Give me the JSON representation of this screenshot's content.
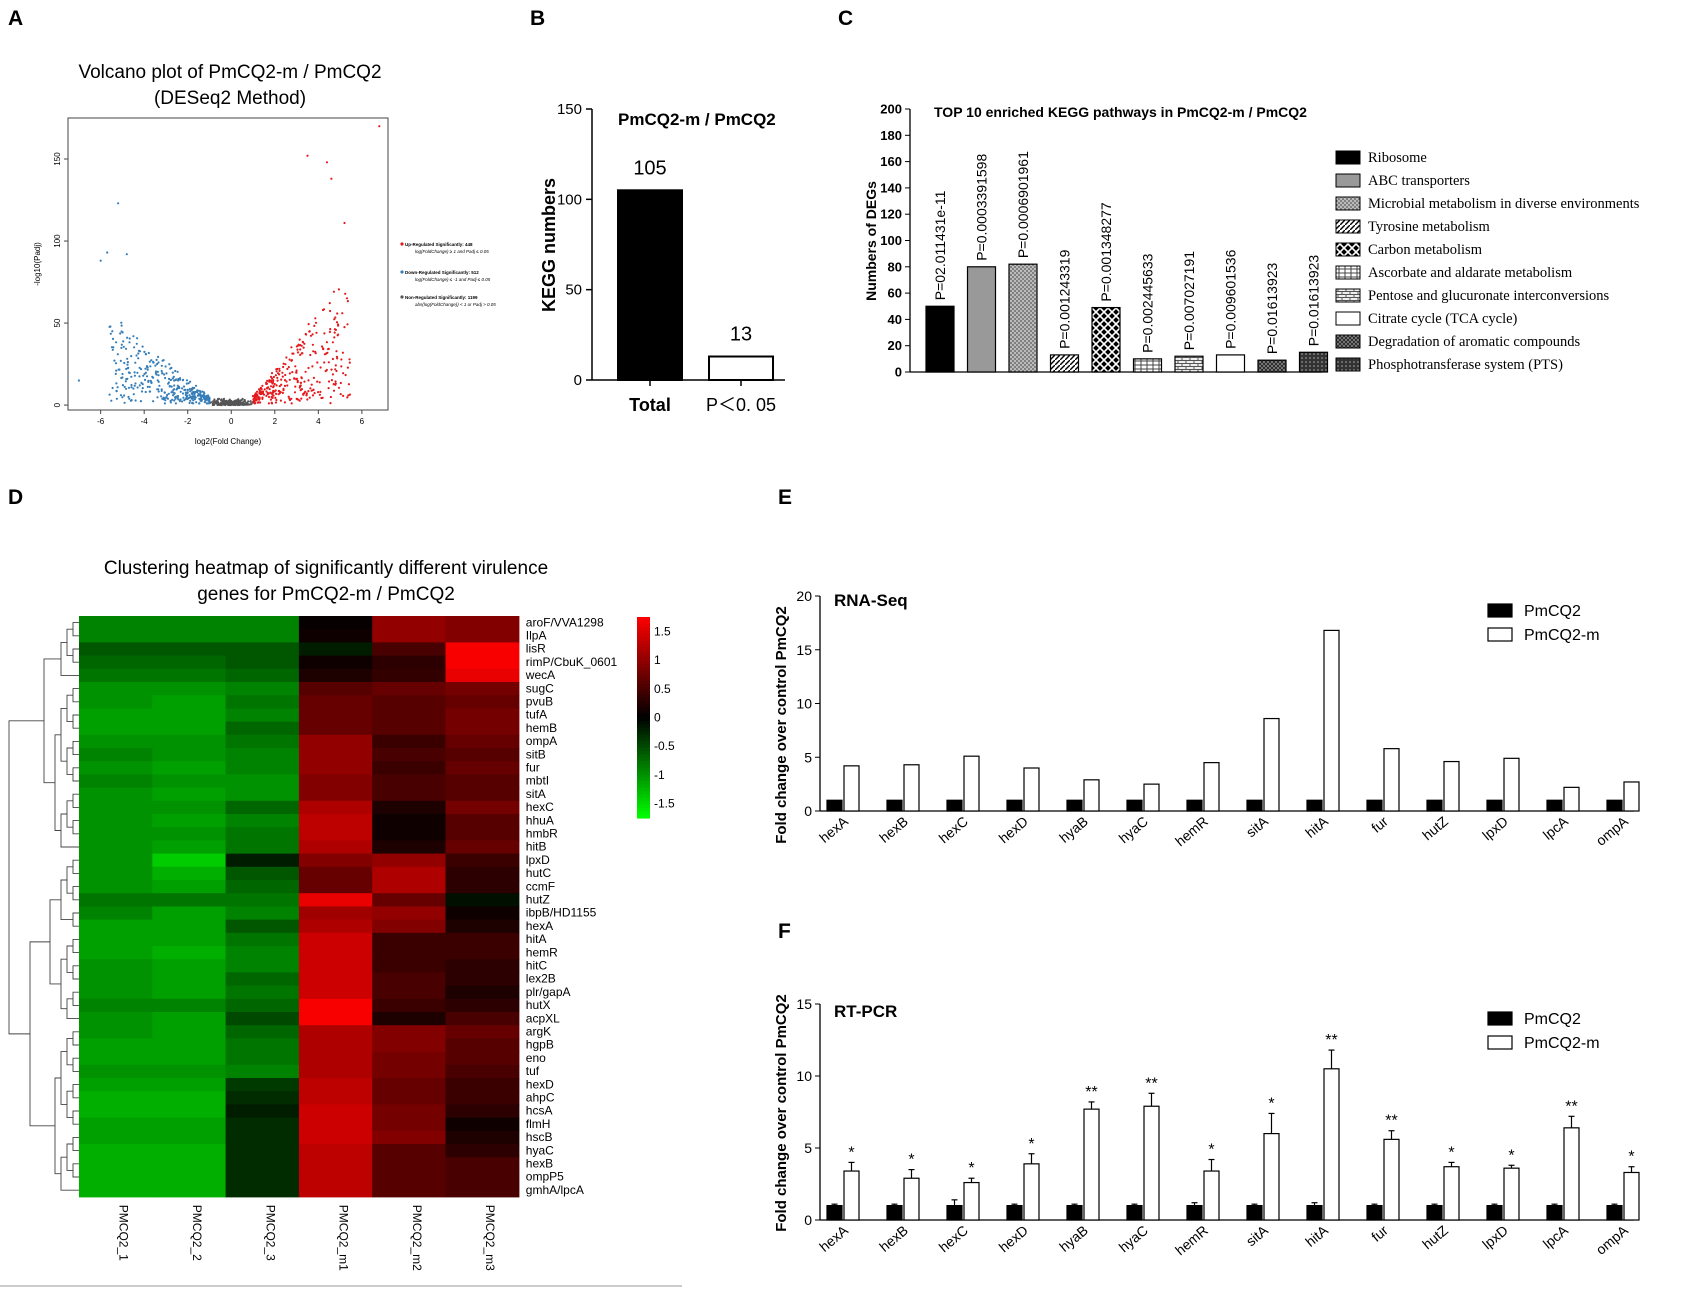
{
  "panels": {
    "A": {
      "letter": "A"
    },
    "B": {
      "letter": "B"
    },
    "C": {
      "letter": "C"
    },
    "D": {
      "letter": "D"
    },
    "E": {
      "letter": "E"
    },
    "F": {
      "letter": "F"
    }
  },
  "colors": {
    "up": "#e41a1c",
    "down": "#377eb8",
    "none": "#555555"
  },
  "chart_data": [
    {
      "id": "A",
      "type": "scatter",
      "title": "Volcano plot of  PmCQ2-m / PmCQ2",
      "subtitle": "(DESeq2 Method)",
      "xlabel": "log2(Fold Change)",
      "ylabel": "-log10(Padj)",
      "xlim": [
        -7.5,
        7.2
      ],
      "ylim": [
        -3,
        175
      ],
      "xticks": [
        -6,
        -4,
        -2,
        0,
        2,
        4,
        6
      ],
      "yticks": [
        0,
        50,
        100,
        150
      ],
      "legend": [
        {
          "label": "Up-Regulated Significantly: 448",
          "sub": "log(FoldChange) ≥ 1 and Padj ≤ 0.05"
        },
        {
          "label": "Down-Regulated Significantly: 512",
          "sub": "log(FoldChange) ≤ -1 and Padj ≤ 0.05"
        },
        {
          "label": "Non-Regulated Significantly: 1199",
          "sub": "abs(log(FoldChange)) < 1 or Padj > 0.05"
        }
      ],
      "highlights": [
        [
          6.8,
          170
        ],
        [
          3.5,
          152
        ],
        [
          4.4,
          148
        ],
        [
          4.6,
          138
        ],
        [
          -5.2,
          123
        ],
        [
          -5.7,
          93
        ],
        [
          -6.0,
          88
        ],
        [
          -4.8,
          92
        ],
        [
          5.2,
          111
        ],
        [
          -7.0,
          15
        ]
      ]
    },
    {
      "id": "B",
      "type": "bar",
      "title": "PmCQ2-m / PmCQ2",
      "ylabel": "KEGG numbers",
      "categories": [
        "Total",
        "P＜0. 05"
      ],
      "values": [
        105,
        13
      ],
      "value_labels": [
        "105",
        "13"
      ],
      "ylim": [
        0,
        150
      ],
      "yticks": [
        0,
        50,
        100,
        150
      ]
    },
    {
      "id": "C",
      "type": "bar",
      "title": "TOP 10 enriched  KEGG pathways  in PmCQ2-m / PmCQ2",
      "ylabel": "Numbers of DEGs",
      "ylim": [
        0,
        200
      ],
      "yticks": [
        0,
        20,
        40,
        60,
        80,
        100,
        120,
        140,
        160,
        180,
        200
      ],
      "categories": [
        "Ribosome",
        "ABC transporters",
        "Microbial metabolism in diverse environments",
        "Tyrosine metabolism",
        "Carbon metabolism",
        "Ascorbate and aldarate metabolism",
        "Pentose and glucuronate interconversions",
        "Citrate cycle (TCA cycle)",
        "Degradation of aromatic compounds",
        "Phosphotransferase system (PTS)"
      ],
      "values": [
        50,
        80,
        82,
        13,
        49,
        10,
        12,
        13,
        9,
        15
      ],
      "pvalues": [
        "P=02.011431e-11",
        "P=0.0003391598",
        "P=0.0006901961",
        "P=0.001243319",
        "P=0.001348277",
        "P=0.002445633",
        "P=0.007027191",
        "P=0.009601536",
        "P=0.01613923",
        "P=0.01613923"
      ],
      "patterns": [
        "black",
        "gray",
        "dots",
        "diag",
        "checker",
        "hgrid",
        "brick",
        "white",
        "cross",
        "darkdots"
      ]
    },
    {
      "id": "D",
      "type": "heatmap",
      "title": "Clustering heatmap of significantly different virulence",
      "subtitle": "genes for PmCQ2-m / PmCQ2",
      "columns": [
        "PMCQ2_1",
        "PMCQ2_2",
        "PMCQ2_3",
        "PMCQ2_m1",
        "PMCQ2_m2",
        "PMCQ2_m3"
      ],
      "rows": [
        "aroF/VVA1298",
        "IlpA",
        "lisR",
        "rimP/CbuK_0601",
        "wecA",
        "sugC",
        "pvuB",
        "tufA",
        "hemB",
        "ompA",
        "sitB",
        "fur",
        "mbtI",
        "sitA",
        "hexC",
        "hhuA",
        "hmbR",
        "hitB",
        "lpxD",
        "hutC",
        "ccmF",
        "hutZ",
        "ibpB/HD1155",
        "hexA",
        "hitA",
        "hemR",
        "hitC",
        "lex2B",
        "plr/gapA",
        "hutX",
        "acpXL",
        "argK",
        "hgpB",
        "eno",
        "tuf",
        "hexD",
        "ahpC",
        "hcsA",
        "flmH",
        "hscB",
        "hyaC",
        "hexB",
        "ompP5",
        "gmhA/lpcA"
      ],
      "values": [
        [
          -0.9,
          -0.9,
          -0.9,
          0.05,
          1.0,
          0.9
        ],
        [
          -0.9,
          -0.9,
          -0.9,
          0.1,
          1.0,
          0.9
        ],
        [
          -0.6,
          -0.6,
          -0.6,
          -0.2,
          0.5,
          1.7
        ],
        [
          -0.7,
          -0.7,
          -0.6,
          0.1,
          0.3,
          1.7
        ],
        [
          -0.8,
          -0.8,
          -0.7,
          0.2,
          0.35,
          1.6
        ],
        [
          -1.0,
          -1.0,
          -0.9,
          0.6,
          0.7,
          0.8
        ],
        [
          -1.0,
          -1.1,
          -0.8,
          0.7,
          0.6,
          0.7
        ],
        [
          -1.1,
          -1.1,
          -0.9,
          0.7,
          0.6,
          0.8
        ],
        [
          -1.1,
          -1.1,
          -0.7,
          0.7,
          0.6,
          0.8
        ],
        [
          -1.0,
          -1.0,
          -0.8,
          1.0,
          0.4,
          0.7
        ],
        [
          -0.9,
          -1.0,
          -0.9,
          1.0,
          0.5,
          0.6
        ],
        [
          -1.0,
          -1.1,
          -0.9,
          1.0,
          0.4,
          0.7
        ],
        [
          -0.9,
          -1.0,
          -1.0,
          0.9,
          0.5,
          0.6
        ],
        [
          -1.0,
          -1.1,
          -1.0,
          0.9,
          0.5,
          0.6
        ],
        [
          -1.0,
          -1.0,
          -0.7,
          1.2,
          0.2,
          0.8
        ],
        [
          -1.0,
          -1.1,
          -0.9,
          1.3,
          0.1,
          0.6
        ],
        [
          -1.0,
          -1.0,
          -0.8,
          1.3,
          0.1,
          0.6
        ],
        [
          -1.0,
          -1.1,
          -0.8,
          1.2,
          0.2,
          0.7
        ],
        [
          -1.0,
          -1.4,
          -0.2,
          0.9,
          1.0,
          0.4
        ],
        [
          -1.0,
          -1.2,
          -0.6,
          0.7,
          1.2,
          0.3
        ],
        [
          -1.0,
          -1.1,
          -0.7,
          0.7,
          1.2,
          0.3
        ],
        [
          -0.8,
          -0.8,
          -0.8,
          1.6,
          0.7,
          -0.1
        ],
        [
          -0.9,
          -1.1,
          -0.9,
          1.1,
          1.0,
          0.1
        ],
        [
          -1.1,
          -1.1,
          -0.6,
          1.2,
          0.9,
          0.2
        ],
        [
          -1.1,
          -1.1,
          -0.8,
          1.4,
          0.4,
          0.4
        ],
        [
          -1.1,
          -1.2,
          -0.9,
          1.4,
          0.4,
          0.4
        ],
        [
          -1.0,
          -1.1,
          -0.9,
          1.4,
          0.4,
          0.3
        ],
        [
          -1.0,
          -1.1,
          -0.7,
          1.4,
          0.5,
          0.3
        ],
        [
          -1.0,
          -1.1,
          -0.8,
          1.4,
          0.5,
          0.2
        ],
        [
          -0.9,
          -0.9,
          -0.7,
          1.7,
          0.4,
          0.3
        ],
        [
          -1.0,
          -1.1,
          -0.5,
          1.7,
          0.2,
          0.5
        ],
        [
          -1.0,
          -1.1,
          -0.7,
          1.2,
          0.9,
          0.7
        ],
        [
          -1.1,
          -1.1,
          -0.8,
          1.2,
          0.9,
          0.6
        ],
        [
          -1.1,
          -1.1,
          -0.8,
          1.2,
          0.8,
          0.6
        ],
        [
          -1.0,
          -1.0,
          -0.9,
          1.2,
          0.8,
          0.5
        ],
        [
          -1.1,
          -1.1,
          -0.4,
          1.3,
          0.7,
          0.4
        ],
        [
          -1.2,
          -1.2,
          -0.3,
          1.3,
          0.7,
          0.4
        ],
        [
          -1.2,
          -1.2,
          -0.2,
          1.4,
          0.8,
          0.3
        ],
        [
          -1.1,
          -1.1,
          -0.3,
          1.4,
          0.8,
          0.1
        ],
        [
          -1.1,
          -1.1,
          -0.3,
          1.4,
          0.9,
          0.2
        ],
        [
          -1.2,
          -1.2,
          -0.3,
          1.3,
          0.6,
          0.3
        ],
        [
          -1.2,
          -1.2,
          -0.3,
          1.3,
          0.6,
          0.5
        ],
        [
          -1.2,
          -1.2,
          -0.3,
          1.3,
          0.6,
          0.5
        ],
        [
          -1.2,
          -1.2,
          -0.3,
          1.3,
          0.6,
          0.5
        ]
      ],
      "colorbar": {
        "ticks": [
          1.5,
          1,
          0.5,
          0,
          -0.5,
          -1,
          -1.5
        ],
        "tick_labels": [
          "1.5",
          "1",
          "0.5",
          "0",
          "-0.5",
          "-1",
          "-1.5"
        ],
        "range": [
          -1.75,
          1.75
        ]
      }
    },
    {
      "id": "E",
      "type": "bar",
      "title": "RNA-Seq",
      "ylabel": "Fold change over control PmCQ2",
      "ylim": [
        0,
        20
      ],
      "yticks": [
        0,
        5,
        10,
        15,
        20
      ],
      "categories": [
        "hexA",
        "hexB",
        "hexC",
        "hexD",
        "hyaB",
        "hyaC",
        "hemR",
        "sitA",
        "hitA",
        "fur",
        "hutZ",
        "lpxD",
        "lpcA",
        "ompA"
      ],
      "series": [
        {
          "name": "PmCQ2",
          "values": [
            1,
            1,
            1,
            1,
            1,
            1,
            1,
            1,
            1,
            1,
            1,
            1,
            1,
            1
          ]
        },
        {
          "name": "PmCQ2-m",
          "values": [
            4.2,
            4.3,
            5.1,
            4.0,
            2.9,
            2.5,
            4.5,
            8.6,
            16.8,
            5.8,
            4.6,
            4.9,
            2.2,
            2.7
          ]
        }
      ]
    },
    {
      "id": "F",
      "type": "bar",
      "title": "RT-PCR",
      "ylabel": "Fold change over control PmCQ2",
      "ylim": [
        0,
        15
      ],
      "yticks": [
        0,
        5,
        10,
        15
      ],
      "categories": [
        "hexA",
        "hexB",
        "hexC",
        "hexD",
        "hyaB",
        "hyaC",
        "hemR",
        "sitA",
        "hitA",
        "fur",
        "hutZ",
        "lpxD",
        "lpcA",
        "ompA"
      ],
      "series": [
        {
          "name": "PmCQ2",
          "values": [
            1,
            1,
            1,
            1,
            1,
            1,
            1,
            1,
            1,
            1,
            1,
            1,
            1,
            1
          ],
          "errors": [
            0.1,
            0.1,
            0.4,
            0.1,
            0.1,
            0.1,
            0.2,
            0.1,
            0.2,
            0.1,
            0.1,
            0.1,
            0.1,
            0.1
          ]
        },
        {
          "name": "PmCQ2-m",
          "values": [
            3.4,
            2.9,
            2.6,
            3.9,
            7.7,
            7.9,
            3.4,
            6.0,
            10.5,
            5.6,
            3.7,
            3.6,
            6.4,
            3.3
          ],
          "errors": [
            0.6,
            0.6,
            0.3,
            0.7,
            0.5,
            0.9,
            0.8,
            1.4,
            1.3,
            0.6,
            0.3,
            0.2,
            0.8,
            0.4
          ]
        }
      ],
      "significance": [
        "*",
        "*",
        "*",
        "*",
        "**",
        "**",
        "*",
        "*",
        "**",
        "**",
        "*",
        "*",
        "**",
        "*"
      ]
    }
  ]
}
